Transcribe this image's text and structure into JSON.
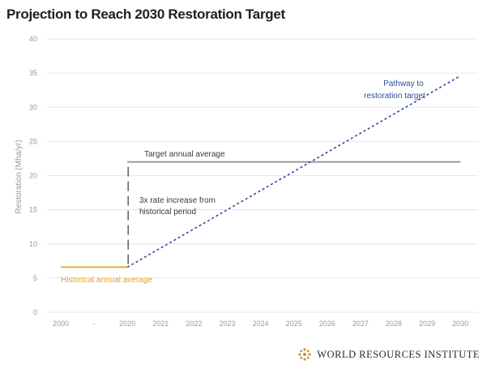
{
  "chart_data": {
    "type": "line",
    "title": "Projection to Reach 2030 Restoration Target",
    "ylabel": "Restoration (Mha/yr)",
    "xlabel": "",
    "ylim": [
      0,
      40
    ],
    "yticks": [
      "0",
      "5",
      "10",
      "15",
      "20",
      "25",
      "30",
      "35",
      "40"
    ],
    "xticks": [
      "2000",
      "-",
      "2020",
      "2021",
      "2022",
      "2023",
      "2024",
      "2025",
      "2026",
      "2027",
      "2028",
      "2029",
      "2030"
    ],
    "grid": true,
    "series": [
      {
        "name": "Historical annual average",
        "style": "solid",
        "color": "#e8a317",
        "x": [
          0,
          2
        ],
        "values": [
          6.6,
          6.6
        ]
      },
      {
        "name": "Target annual average",
        "style": "solid",
        "color": "#8c8c8c",
        "x": [
          2,
          12
        ],
        "values": [
          22,
          22
        ]
      },
      {
        "name": "Pathway to restoration target",
        "style": "dotted",
        "color": "#2f4d9c",
        "x": [
          2,
          12
        ],
        "values": [
          6.6,
          34.6
        ]
      }
    ],
    "annotations": {
      "target": "Target annual average",
      "increase_line1": "3x rate increase from",
      "increase_line2": "historical period",
      "pathway_line1": "Pathway to",
      "pathway_line2": "restoration target",
      "historical": "Historical annual average"
    },
    "increase_gap": {
      "x": 2,
      "from": 6.6,
      "to": 22
    }
  },
  "footer": {
    "org": "WORLD RESOURCES INSTITUTE",
    "logo_icon": "wri-logo-icon"
  }
}
